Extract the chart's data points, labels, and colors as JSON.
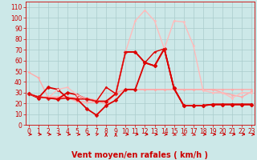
{
  "bg_color": "#cce8e8",
  "grid_color": "#aacccc",
  "xlabel": "Vent moyen/en rafales ( km/h )",
  "xlabel_color": "#cc0000",
  "xlabel_fontsize": 7,
  "yticks": [
    0,
    10,
    20,
    30,
    40,
    50,
    60,
    70,
    80,
    90,
    100,
    110
  ],
  "xticks": [
    0,
    1,
    2,
    3,
    4,
    5,
    6,
    7,
    8,
    9,
    10,
    11,
    12,
    13,
    14,
    15,
    16,
    17,
    18,
    19,
    20,
    21,
    22,
    23
  ],
  "ylim": [
    0,
    115
  ],
  "xlim": [
    -0.3,
    23.3
  ],
  "series": [
    {
      "y": [
        49,
        44,
        26,
        26,
        26,
        25,
        25,
        23,
        19,
        30,
        33,
        33,
        33,
        33,
        33,
        33,
        33,
        33,
        33,
        33,
        33,
        33,
        33,
        33
      ],
      "color": "#ffaaaa",
      "lw": 1.0,
      "marker": "D",
      "ms": 1.5
    },
    {
      "y": [
        29,
        26,
        26,
        25,
        25,
        22,
        21,
        21,
        22,
        30,
        33,
        33,
        33,
        33,
        33,
        33,
        33,
        33,
        33,
        33,
        30,
        28,
        26,
        31
      ],
      "color": "#ffaaaa",
      "lw": 1.0,
      "marker": "D",
      "ms": 1.5
    },
    {
      "y": [
        29,
        25,
        35,
        33,
        25,
        24,
        15,
        9,
        18,
        23,
        33,
        33,
        58,
        55,
        71,
        34,
        18,
        18,
        18,
        19,
        19,
        19,
        19,
        19
      ],
      "color": "#dd0000",
      "lw": 1.3,
      "marker": "D",
      "ms": 2.5
    },
    {
      "y": [
        29,
        26,
        25,
        24,
        30,
        28,
        24,
        22,
        22,
        29,
        68,
        68,
        58,
        55,
        71,
        34,
        18,
        18,
        18,
        19,
        19,
        19,
        19,
        19
      ],
      "color": "#dd0000",
      "lw": 1.3,
      "marker": "D",
      "ms": 2.5
    },
    {
      "y": [
        29,
        26,
        25,
        33,
        35,
        28,
        24,
        22,
        35,
        29,
        68,
        97,
        107,
        97,
        71,
        97,
        96,
        74,
        32,
        30,
        30,
        25,
        30,
        30
      ],
      "color": "#ffbbbb",
      "lw": 1.0,
      "marker": "D",
      "ms": 1.5
    },
    {
      "y": [
        29,
        26,
        25,
        24,
        25,
        24,
        24,
        22,
        35,
        29,
        68,
        68,
        58,
        68,
        71,
        34,
        18,
        18,
        18,
        19,
        19,
        19,
        19,
        19
      ],
      "color": "#dd0000",
      "lw": 1.0,
      "marker": "D",
      "ms": 1.5
    }
  ],
  "tick_fontsize": 5.5,
  "tick_color": "#cc0000",
  "arrow_directions": [
    1,
    1,
    1,
    1,
    1,
    1,
    1,
    2,
    3,
    3,
    1,
    1,
    1,
    1,
    1,
    4,
    4,
    4,
    1,
    1,
    1,
    1,
    1,
    1
  ],
  "arrow_color": "#cc0000"
}
